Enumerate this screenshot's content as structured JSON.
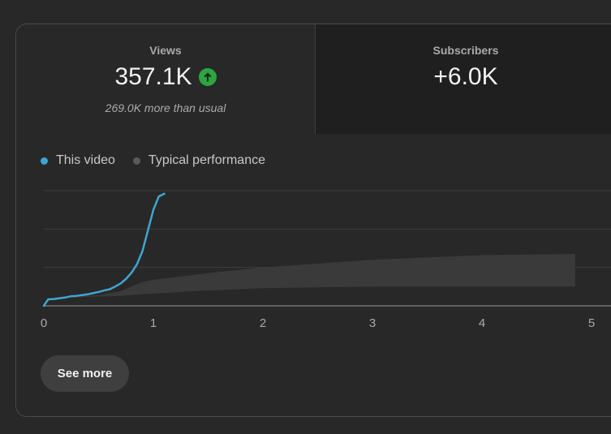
{
  "metrics": {
    "views": {
      "label": "Views",
      "value": "357.1K",
      "trend_icon": "arrow-up-circle-icon",
      "comparison": "269.0K more than usual",
      "trend_color": "#2ba640"
    },
    "subscribers": {
      "label": "Subscribers",
      "value": "+6.0K"
    }
  },
  "legend": {
    "this_video": {
      "label": "This video",
      "color": "#3ea6d2"
    },
    "typical": {
      "label": "Typical performance",
      "color": "#5a5a5a"
    }
  },
  "chart_data": {
    "type": "line",
    "title": "",
    "xlabel": "",
    "ylabel": "",
    "x_ticks": [
      "0",
      "1",
      "2",
      "3",
      "4",
      "5"
    ],
    "xlim": [
      0,
      5.2
    ],
    "ylim": [
      0,
      3
    ],
    "grid": true,
    "series": [
      {
        "name": "This video",
        "x": [
          0,
          0.04,
          0.1,
          0.2,
          0.25,
          0.3,
          0.35,
          0.4,
          0.45,
          0.5,
          0.55,
          0.6,
          0.65,
          0.7,
          0.75,
          0.8,
          0.85,
          0.9,
          0.95,
          1.0,
          1.05,
          1.1
        ],
        "y": [
          0,
          0.17,
          0.18,
          0.22,
          0.25,
          0.26,
          0.28,
          0.3,
          0.33,
          0.36,
          0.4,
          0.43,
          0.5,
          0.58,
          0.7,
          0.86,
          1.08,
          1.42,
          1.96,
          2.5,
          2.85,
          2.92
        ]
      }
    ],
    "typical_band": {
      "name": "Typical performance",
      "x": [
        0,
        0.5,
        0.7,
        0.9,
        1.0,
        1.5,
        2.0,
        3.0,
        4.0,
        4.85
      ],
      "upper": [
        0.2,
        0.28,
        0.38,
        0.62,
        0.68,
        0.85,
        1.0,
        1.2,
        1.32,
        1.35
      ],
      "lower": [
        0.2,
        0.24,
        0.26,
        0.3,
        0.32,
        0.4,
        0.46,
        0.5,
        0.5,
        0.5
      ]
    }
  },
  "actions": {
    "see_more": "See more"
  }
}
